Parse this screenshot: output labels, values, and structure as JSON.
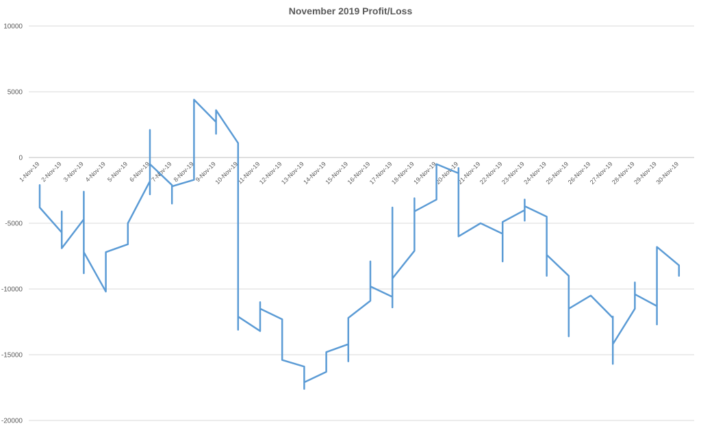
{
  "chart_data": {
    "type": "line",
    "title": "November 2019 Profit/Loss",
    "ylim": [
      -20000,
      10000
    ],
    "yticks": [
      10000,
      5000,
      0,
      -5000,
      -10000,
      -15000,
      -20000
    ],
    "grid": true,
    "line_color": "#5b9bd5",
    "categories": [
      "1-Nov-19",
      "2-Nov-19",
      "3-Nov-19",
      "4-Nov-19",
      "5-Nov-19",
      "6-Nov-19",
      "7-Nov-19",
      "8-Nov-19",
      "9-Nov-19",
      "10-Nov-19",
      "11-Nov-19",
      "12-Nov-19",
      "13-Nov-19",
      "14-Nov-19",
      "15-Nov-19",
      "16-Nov-19",
      "17-Nov-19",
      "18-Nov-19",
      "19-Nov-19",
      "20-Nov-19",
      "21-Nov-19",
      "22-Nov-19",
      "23-Nov-19",
      "24-Nov-19",
      "25-Nov-19",
      "26-Nov-19",
      "27-Nov-19",
      "28-Nov-19",
      "29-Nov-19",
      "30-Nov-19"
    ],
    "points": [
      {
        "i": 0,
        "y": -2100
      },
      {
        "i": 0,
        "y": -3800
      },
      {
        "i": 1,
        "y": -5700
      },
      {
        "i": 1,
        "y": -4100
      },
      {
        "i": 1,
        "y": -6900
      },
      {
        "i": 2,
        "y": -4700
      },
      {
        "i": 2,
        "y": -2600
      },
      {
        "i": 2,
        "y": -8800
      },
      {
        "i": 2,
        "y": -7200
      },
      {
        "i": 3,
        "y": -10200
      },
      {
        "i": 3,
        "y": -7200
      },
      {
        "i": 4,
        "y": -6600
      },
      {
        "i": 4,
        "y": -5000
      },
      {
        "i": 5,
        "y": -1800
      },
      {
        "i": 5,
        "y": 2100
      },
      {
        "i": 5,
        "y": -2800
      },
      {
        "i": 5,
        "y": -500
      },
      {
        "i": 6,
        "y": -2100
      },
      {
        "i": 6,
        "y": -3500
      },
      {
        "i": 6,
        "y": -2200
      },
      {
        "i": 7,
        "y": -1700
      },
      {
        "i": 7,
        "y": 4400
      },
      {
        "i": 8,
        "y": 2700
      },
      {
        "i": 8,
        "y": 1800
      },
      {
        "i": 8,
        "y": 3600
      },
      {
        "i": 9,
        "y": 1100
      },
      {
        "i": 9,
        "y": -13100
      },
      {
        "i": 9,
        "y": -12100
      },
      {
        "i": 10,
        "y": -13200
      },
      {
        "i": 10,
        "y": -11000
      },
      {
        "i": 10,
        "y": -11500
      },
      {
        "i": 11,
        "y": -12300
      },
      {
        "i": 11,
        "y": -15400
      },
      {
        "i": 12,
        "y": -15900
      },
      {
        "i": 12,
        "y": -17600
      },
      {
        "i": 12,
        "y": -17100
      },
      {
        "i": 13,
        "y": -16300
      },
      {
        "i": 13,
        "y": -14800
      },
      {
        "i": 14,
        "y": -14200
      },
      {
        "i": 14,
        "y": -15500
      },
      {
        "i": 14,
        "y": -12200
      },
      {
        "i": 15,
        "y": -10900
      },
      {
        "i": 15,
        "y": -7900
      },
      {
        "i": 15,
        "y": -9800
      },
      {
        "i": 16,
        "y": -10600
      },
      {
        "i": 16,
        "y": -11400
      },
      {
        "i": 16,
        "y": -3800
      },
      {
        "i": 16,
        "y": -9200
      },
      {
        "i": 17,
        "y": -7100
      },
      {
        "i": 17,
        "y": -3100
      },
      {
        "i": 17,
        "y": -4100
      },
      {
        "i": 18,
        "y": -3200
      },
      {
        "i": 18,
        "y": -500
      },
      {
        "i": 19,
        "y": -1200
      },
      {
        "i": 19,
        "y": -800
      },
      {
        "i": 19,
        "y": -6000
      },
      {
        "i": 20,
        "y": -5000
      },
      {
        "i": 21,
        "y": -5800
      },
      {
        "i": 21,
        "y": -7900
      },
      {
        "i": 21,
        "y": -4900
      },
      {
        "i": 22,
        "y": -4000
      },
      {
        "i": 22,
        "y": -4800
      },
      {
        "i": 22,
        "y": -3200
      },
      {
        "i": 22,
        "y": -3700
      },
      {
        "i": 23,
        "y": -4500
      },
      {
        "i": 23,
        "y": -9000
      },
      {
        "i": 23,
        "y": -7400
      },
      {
        "i": 24,
        "y": -9000
      },
      {
        "i": 24,
        "y": -13600
      },
      {
        "i": 24,
        "y": -11500
      },
      {
        "i": 25,
        "y": -10500
      },
      {
        "i": 26,
        "y": -12200
      },
      {
        "i": 26,
        "y": -15700
      },
      {
        "i": 26,
        "y": -12100
      },
      {
        "i": 26,
        "y": -14200
      },
      {
        "i": 27,
        "y": -11500
      },
      {
        "i": 27,
        "y": -9500
      },
      {
        "i": 27,
        "y": -10400
      },
      {
        "i": 28,
        "y": -11300
      },
      {
        "i": 28,
        "y": -12700
      },
      {
        "i": 28,
        "y": -6800
      },
      {
        "i": 29,
        "y": -8200
      },
      {
        "i": 29,
        "y": -9000
      }
    ]
  }
}
